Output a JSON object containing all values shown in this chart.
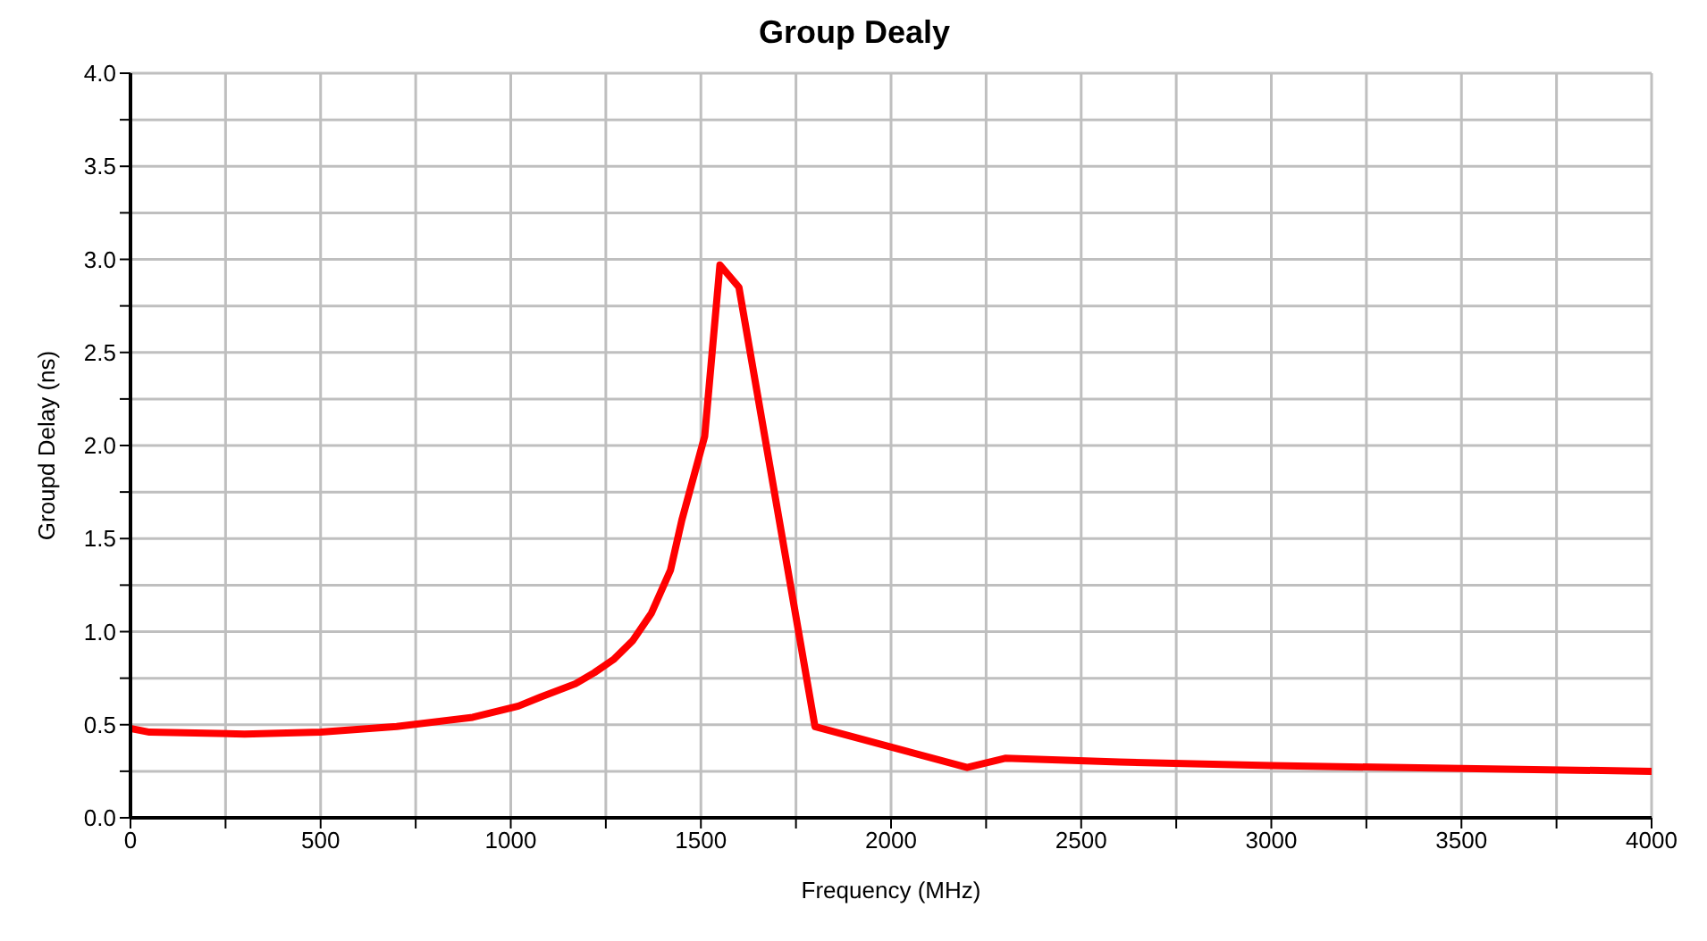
{
  "chart_data": {
    "type": "line",
    "title": "Group Dealy",
    "xlabel": "Frequency (MHz)",
    "ylabel": "Groupd Delay (ns)",
    "x": [
      0,
      50,
      300,
      500,
      700,
      900,
      1020,
      1080,
      1170,
      1220,
      1270,
      1320,
      1370,
      1420,
      1450,
      1510,
      1550,
      1600,
      1800,
      2200,
      2300,
      2600,
      3000,
      4000
    ],
    "series": [
      {
        "color": "#ff0000",
        "values": [
          0.48,
          0.46,
          0.45,
          0.46,
          0.49,
          0.54,
          0.6,
          0.65,
          0.72,
          0.78,
          0.85,
          0.95,
          1.1,
          1.33,
          1.6,
          2.05,
          2.97,
          2.85,
          0.49,
          0.27,
          0.32,
          0.3,
          0.28,
          0.25
        ]
      }
    ],
    "xlim": [
      0,
      4000
    ],
    "xticks": [
      0,
      {
        "value": 250,
        "label": null
      },
      500,
      {
        "value": 750,
        "label": null
      },
      1000,
      {
        "value": 1250,
        "label": null
      },
      1500,
      {
        "value": 1750,
        "label": null
      },
      2000,
      {
        "value": 2250,
        "label": null
      },
      2500,
      {
        "value": 2750,
        "label": null
      },
      3000,
      {
        "value": 3250,
        "label": null
      },
      3500,
      {
        "value": 3750,
        "label": null
      },
      4000
    ],
    "ylim": [
      0,
      4
    ],
    "yticks": [
      {
        "value": 0,
        "label": "0.0"
      },
      {
        "value": 0.25,
        "label": null
      },
      {
        "value": 0.5,
        "label": "0.5"
      },
      {
        "value": 0.75,
        "label": null
      },
      {
        "value": 1,
        "label": "1.0"
      },
      {
        "value": 1.25,
        "label": null
      },
      {
        "value": 1.5,
        "label": "1.5"
      },
      {
        "value": 1.75,
        "label": null
      },
      {
        "value": 2,
        "label": "2.0"
      },
      {
        "value": 2.25,
        "label": null
      },
      {
        "value": 2.5,
        "label": "2.5"
      },
      {
        "value": 2.75,
        "label": null
      },
      {
        "value": 3,
        "label": "3.0"
      },
      {
        "value": 3.25,
        "label": null
      },
      {
        "value": 3.5,
        "label": "3.5"
      },
      {
        "value": 3.75,
        "label": null
      },
      {
        "value": 4,
        "label": "4.0"
      }
    ],
    "grid": true,
    "legend": false,
    "marker": "none",
    "line_style": "solid"
  }
}
